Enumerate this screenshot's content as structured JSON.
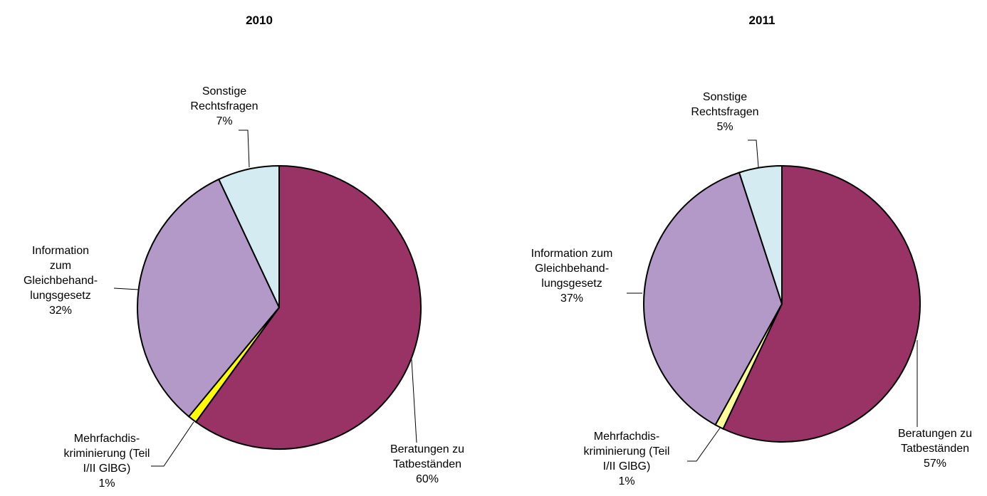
{
  "chart_data": [
    {
      "type": "pie",
      "title": "2010",
      "categories": [
        [
          "Beratungen zu",
          "Tatbeständen"
        ],
        [
          "Mehrfachdis-",
          "kriminierung (Teil",
          "I/II GlBG)"
        ],
        [
          "Information",
          "zum",
          "Gleichbehand-",
          "lungsgesetz"
        ],
        [
          "Sonstige",
          "Rechtsfragen"
        ]
      ],
      "values": [
        60,
        1,
        32,
        7
      ],
      "value_labels": [
        "60%",
        "1%",
        "32%",
        "7%"
      ],
      "colors": [
        "#993366",
        "#ffff00",
        "#b399c8",
        "#d4ebf2"
      ]
    },
    {
      "type": "pie",
      "title": "2011",
      "categories": [
        [
          "Beratungen zu",
          "Tatbeständen"
        ],
        [
          "Mehrfachdis-",
          "kriminierung (Teil",
          "I/II GlBG)"
        ],
        [
          "Information zum",
          "Gleichbehand-",
          "lungsgesetz"
        ],
        [
          "Sonstige",
          "Rechtsfragen"
        ]
      ],
      "values": [
        57,
        1,
        37,
        5
      ],
      "value_labels": [
        "57%",
        "1%",
        "37%",
        "5%"
      ],
      "colors": [
        "#993366",
        "#ffff99",
        "#b399c8",
        "#d4ebf2"
      ]
    }
  ]
}
